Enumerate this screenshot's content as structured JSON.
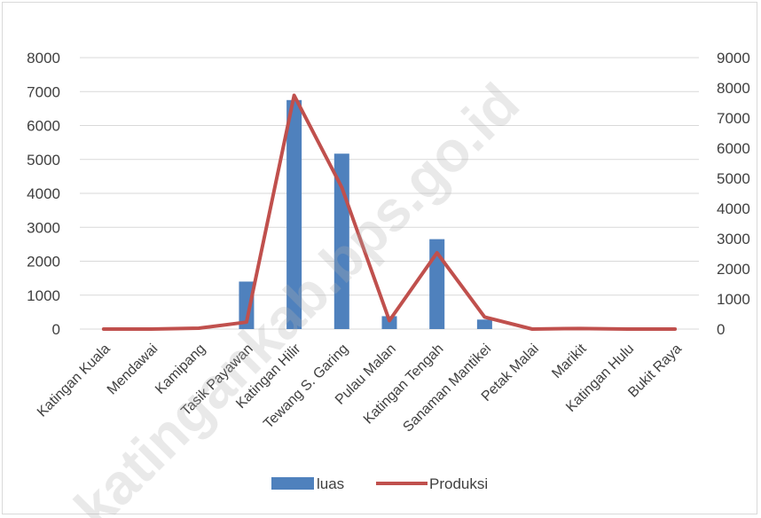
{
  "chart_data": {
    "type": "bar+line",
    "categories": [
      "Katingan Kuala",
      "Mendawai",
      "Kamipang",
      "Tasik Payawan",
      "Katingan Hilir",
      "Tewang S. Garing",
      "Pulau Malan",
      "Katingan Tengah",
      "Sanaman Mantikei",
      "Petak Malai",
      "Marikit",
      "Katingan Hulu",
      "Bukit Raya"
    ],
    "series": [
      {
        "name": "luas",
        "type": "bar",
        "axis": "left",
        "color": "#4f81bd",
        "values": [
          0,
          0,
          30,
          1400,
          6750,
          5170,
          380,
          2650,
          280,
          0,
          0,
          0,
          0
        ]
      },
      {
        "name": "Produksi",
        "type": "line",
        "axis": "right",
        "color": "#c0504d",
        "values": [
          0,
          0,
          30,
          230,
          7750,
          4700,
          280,
          2530,
          400,
          0,
          20,
          0,
          0
        ]
      }
    ],
    "y_left": {
      "min": 0,
      "max": 8000,
      "ticks": [
        0,
        1000,
        2000,
        3000,
        4000,
        5000,
        6000,
        7000,
        8000
      ]
    },
    "y_right": {
      "min": 0,
      "max": 9000,
      "ticks": [
        0,
        1000,
        2000,
        3000,
        4000,
        5000,
        6000,
        7000,
        8000,
        9000
      ]
    },
    "grid": true,
    "legend_position": "bottom",
    "watermark": "katingankab.bps.go.id"
  }
}
